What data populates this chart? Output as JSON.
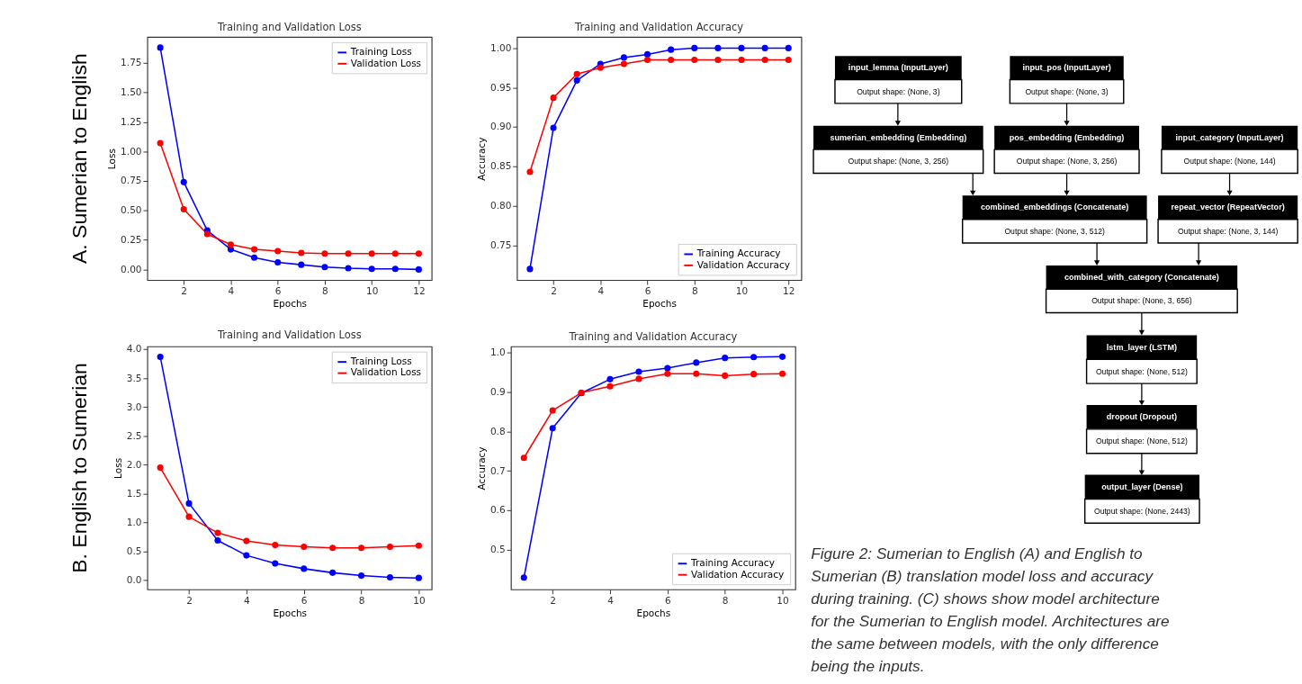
{
  "chart_data": [
    {
      "type": "line",
      "title": "Training and Validation Loss",
      "xlabel": "Epochs",
      "ylabel": "Loss",
      "annotations": [
        "A. Sumerian to English"
      ],
      "x": [
        1,
        2,
        3,
        4,
        5,
        6,
        7,
        8,
        9,
        10,
        11,
        12
      ],
      "series": [
        {
          "name": "Training Loss",
          "color": "#0000ff",
          "values": [
            1.88,
            0.74,
            0.33,
            0.17,
            0.1,
            0.06,
            0.04,
            0.02,
            0.01,
            0.005,
            0.005,
            0.0
          ]
        },
        {
          "name": "Validation Loss",
          "color": "#ff0000",
          "values": [
            1.07,
            0.51,
            0.3,
            0.21,
            0.17,
            0.155,
            0.14,
            0.135,
            0.135,
            0.135,
            0.135,
            0.135
          ]
        }
      ],
      "xlim": [
        0.45,
        12.55
      ],
      "xticks": [
        2,
        4,
        6,
        8,
        10,
        12
      ],
      "ylim": [
        -0.09,
        1.97
      ],
      "yticks": [
        {
          "value": 0,
          "label": "0.00"
        },
        {
          "value": 0.25,
          "label": "0.25"
        },
        {
          "value": 0.5,
          "label": "0.50"
        },
        {
          "value": 0.75,
          "label": "0.75"
        },
        {
          "value": 1,
          "label": "1.00"
        },
        {
          "value": 1.25,
          "label": "1.25"
        },
        {
          "value": 1.5,
          "label": "1.50"
        },
        {
          "value": 1.75,
          "label": "1.75"
        }
      ],
      "legend": "top right",
      "marker": "circle",
      "line_style": "solid",
      "grid": false
    },
    {
      "type": "line",
      "title": "Training and Validation Accuracy",
      "xlabel": "Epochs",
      "ylabel": "Accuracy",
      "x": [
        1,
        2,
        3,
        4,
        5,
        6,
        7,
        8,
        9,
        10,
        11,
        12
      ],
      "series": [
        {
          "name": "Training Accuracy",
          "color": "#0000ff",
          "values": [
            0.72,
            0.899,
            0.959,
            0.98,
            0.988,
            0.992,
            0.998,
            1.0,
            1.0,
            1.0,
            1.0,
            1.0
          ]
        },
        {
          "name": "Validation Accuracy",
          "color": "#ff0000",
          "values": [
            0.843,
            0.937,
            0.967,
            0.975,
            0.98,
            0.985,
            0.985,
            0.985,
            0.985,
            0.985,
            0.985,
            0.985
          ]
        }
      ],
      "xlim": [
        0.45,
        12.55
      ],
      "xticks": [
        2,
        4,
        6,
        8,
        10,
        12
      ],
      "ylim": [
        0.706,
        1.014
      ],
      "yticks": [
        {
          "value": 0.75,
          "label": "0.75"
        },
        {
          "value": 0.8,
          "label": "0.80"
        },
        {
          "value": 0.85,
          "label": "0.85"
        },
        {
          "value": 0.9,
          "label": "0.90"
        },
        {
          "value": 0.95,
          "label": "0.95"
        },
        {
          "value": 1,
          "label": "1.00"
        }
      ],
      "legend": "bottom right",
      "marker": "circle",
      "line_style": "solid",
      "grid": false
    },
    {
      "type": "line",
      "title": "Training and Validation Loss",
      "xlabel": "Epochs",
      "ylabel": "Loss",
      "annotations": [
        "B. English to Sumerian"
      ],
      "x": [
        1,
        2,
        3,
        4,
        5,
        6,
        7,
        8,
        9,
        10
      ],
      "series": [
        {
          "name": "Training Loss",
          "color": "#0000ff",
          "values": [
            3.87,
            1.33,
            0.69,
            0.43,
            0.29,
            0.2,
            0.13,
            0.08,
            0.05,
            0.04
          ]
        },
        {
          "name": "Validation Loss",
          "color": "#ff0000",
          "values": [
            1.95,
            1.1,
            0.82,
            0.68,
            0.61,
            0.58,
            0.56,
            0.56,
            0.58,
            0.6
          ]
        }
      ],
      "xlim": [
        0.55,
        10.45
      ],
      "xticks": [
        2,
        4,
        6,
        8,
        10
      ],
      "ylim": [
        -0.16,
        4.05
      ],
      "yticks": [
        {
          "value": 0,
          "label": "0.0"
        },
        {
          "value": 0.5,
          "label": "0.5"
        },
        {
          "value": 1,
          "label": "1.0"
        },
        {
          "value": 1.5,
          "label": "1.5"
        },
        {
          "value": 2,
          "label": "2.0"
        },
        {
          "value": 2.5,
          "label": "2.5"
        },
        {
          "value": 3,
          "label": "3.0"
        },
        {
          "value": 3.5,
          "label": "3.5"
        },
        {
          "value": 4,
          "label": "4.0"
        }
      ],
      "legend": "top right",
      "marker": "circle",
      "line_style": "solid",
      "grid": false
    },
    {
      "type": "line",
      "title": "Training and Validation Accuracy",
      "xlabel": "Epochs",
      "ylabel": "Accuracy",
      "x": [
        1,
        2,
        3,
        4,
        5,
        6,
        7,
        8,
        9,
        10
      ],
      "series": [
        {
          "name": "Training Accuracy",
          "color": "#0000ff",
          "values": [
            0.43,
            0.808,
            0.897,
            0.932,
            0.951,
            0.96,
            0.974,
            0.986,
            0.988,
            0.989
          ]
        },
        {
          "name": "Validation Accuracy",
          "color": "#ff0000",
          "values": [
            0.733,
            0.853,
            0.898,
            0.914,
            0.933,
            0.946,
            0.946,
            0.941,
            0.945,
            0.946
          ]
        }
      ],
      "xlim": [
        0.55,
        10.45
      ],
      "xticks": [
        2,
        4,
        6,
        8,
        10
      ],
      "ylim": [
        0.4,
        1.015
      ],
      "yticks": [
        {
          "value": 0.5,
          "label": "0.5"
        },
        {
          "value": 0.6,
          "label": "0.6"
        },
        {
          "value": 0.7,
          "label": "0.7"
        },
        {
          "value": 0.8,
          "label": "0.8"
        },
        {
          "value": 0.9,
          "label": "0.9"
        },
        {
          "value": 1,
          "label": "1.0"
        }
      ],
      "legend": "bottom right",
      "marker": "circle",
      "line_style": "solid",
      "grid": false
    },
    {
      "type": "other",
      "annotations": [
        "input_lemma (InputLayer)",
        "Output shape: (None, 3)",
        "input_pos (InputLayer)",
        "Output shape: (None, 3)",
        "sumerian_embedding (Embedding)",
        "Output shape: (None, 3, 256)",
        "pos_embedding (Embedding)",
        "Output shape: (None, 3, 256)",
        "input_category (InputLayer)",
        "Output shape: (None, 144)",
        "combined_embeddings (Concatenate)",
        "Output shape: (None, 3, 512)",
        "repeat_vector (RepeatVector)",
        "Output shape: (None, 3, 144)",
        "combined_with_category (Concatenate)",
        "Output shape: (None, 3, 656)",
        "lstm_layer (LSTM)",
        "Output shape: (None, 512)",
        "dropout (Dropout)",
        "Output shape: (None, 512)",
        "output_layer (Dense)",
        "Output shape: (None, 2443)",
        "Figure 2: Sumerian to English (A) and English to Sumerian (B) translation model loss and accuracy during training. (C) shows show model architecture for the Sumerian to English model. Architectures are the same between models, with the only difference being the inputs."
      ]
    }
  ]
}
